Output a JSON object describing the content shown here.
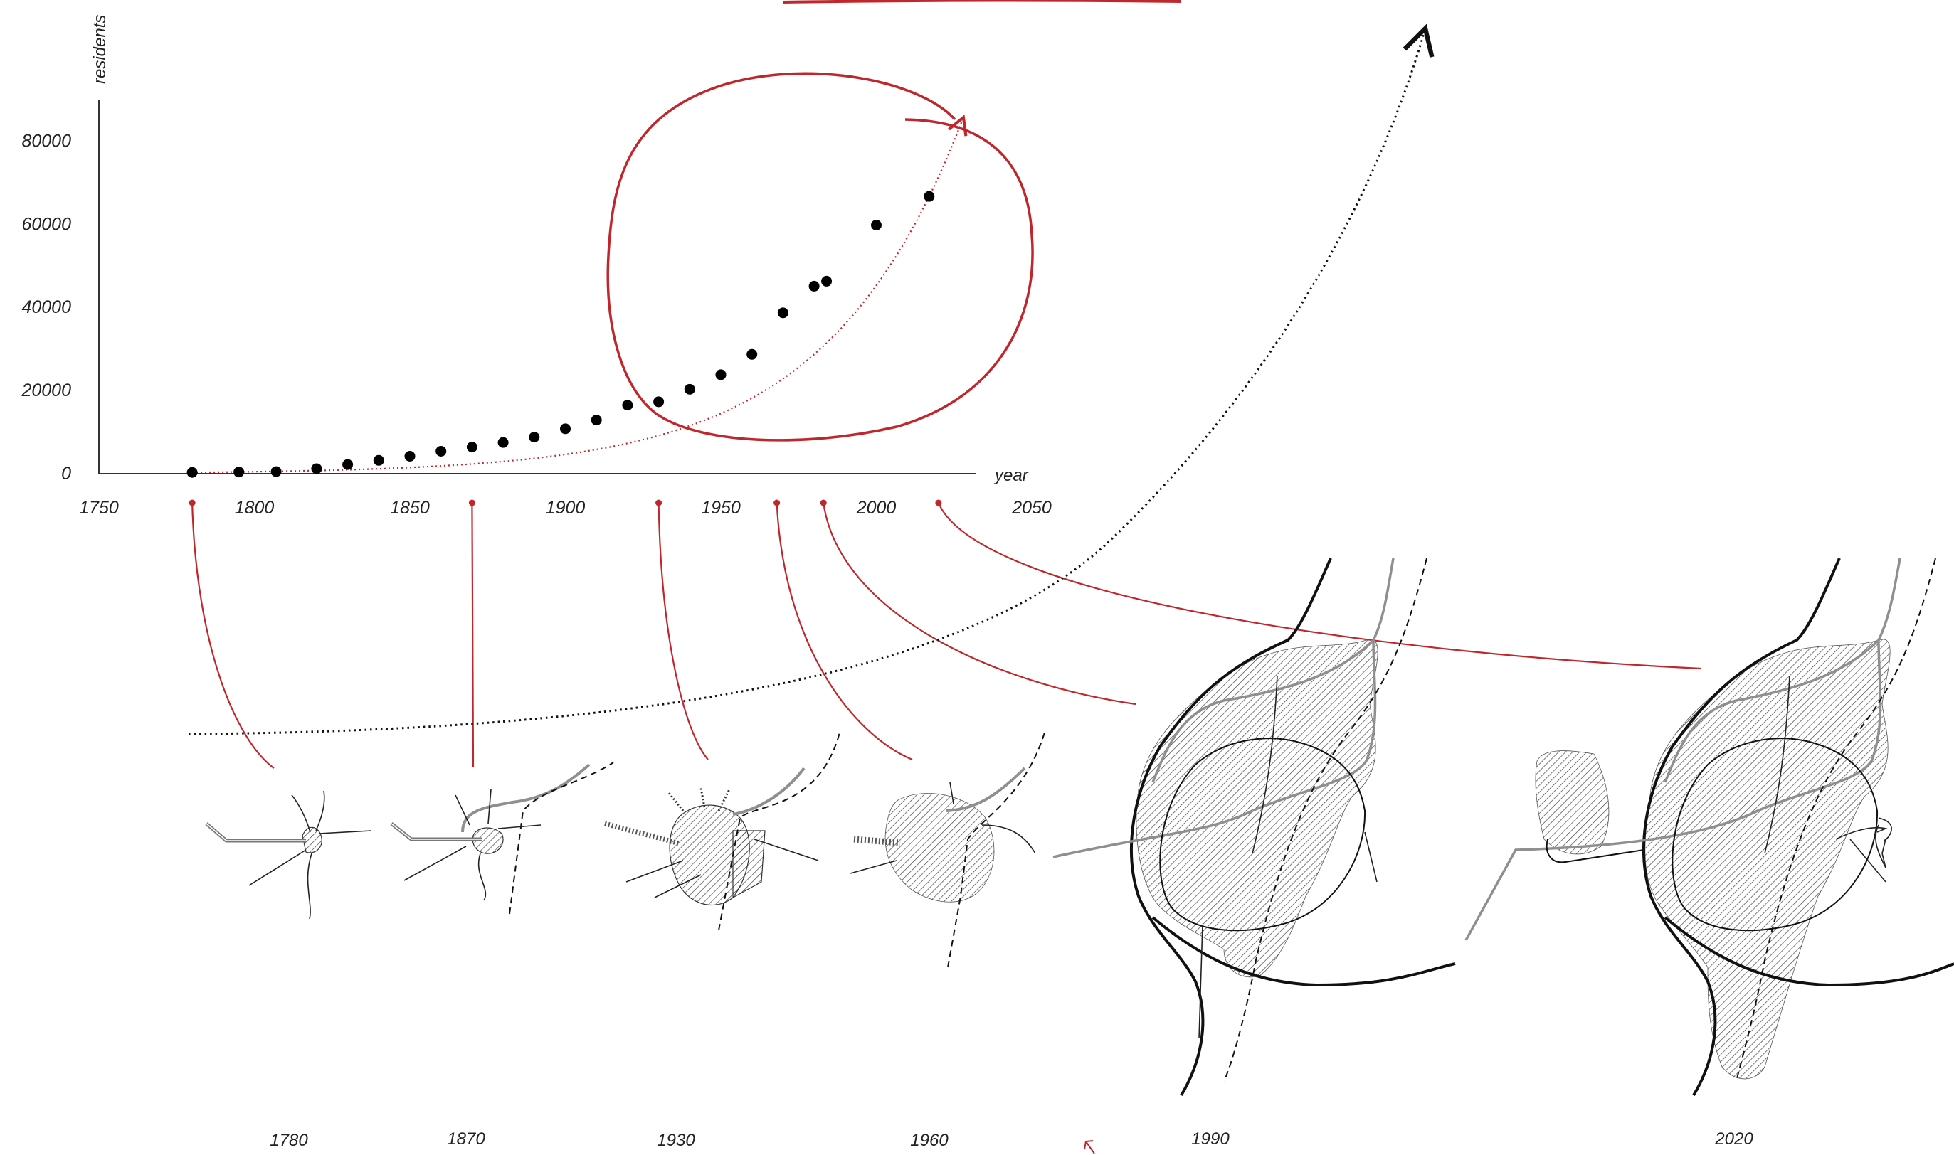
{
  "chart_data": {
    "type": "scatter",
    "xlabel": "year",
    "ylabel": "residents",
    "xlim": [
      1750,
      2050
    ],
    "ylim": [
      0,
      90000
    ],
    "x_ticks": [
      "1750",
      "1800",
      "1850",
      "1900",
      "1950",
      "2000",
      "2050"
    ],
    "y_ticks": [
      "0",
      "20000",
      "40000",
      "60000",
      "80000"
    ],
    "points": [
      {
        "x": 1780,
        "y": 300
      },
      {
        "x": 1795,
        "y": 400
      },
      {
        "x": 1807,
        "y": 500
      },
      {
        "x": 1820,
        "y": 1200
      },
      {
        "x": 1830,
        "y": 2200
      },
      {
        "x": 1840,
        "y": 3200
      },
      {
        "x": 1850,
        "y": 4200
      },
      {
        "x": 1860,
        "y": 5400
      },
      {
        "x": 1870,
        "y": 6400
      },
      {
        "x": 1880,
        "y": 7500
      },
      {
        "x": 1890,
        "y": 8800
      },
      {
        "x": 1900,
        "y": 10800
      },
      {
        "x": 1910,
        "y": 12900
      },
      {
        "x": 1920,
        "y": 16500
      },
      {
        "x": 1930,
        "y": 17300
      },
      {
        "x": 1940,
        "y": 20300
      },
      {
        "x": 1950,
        "y": 23800
      },
      {
        "x": 1960,
        "y": 28700
      },
      {
        "x": 1970,
        "y": 38700
      },
      {
        "x": 1980,
        "y": 45100
      },
      {
        "x": 1984,
        "y": 46300
      },
      {
        "x": 2000,
        "y": 59800
      },
      {
        "x": 2017,
        "y": 66700
      }
    ],
    "trend": {
      "type": "exponential",
      "color": "#c0272d",
      "style": "dotted"
    },
    "highlight_color": "#c0272d",
    "marker_color": "#000000"
  },
  "maps": {
    "years": [
      "1780",
      "1870",
      "1930",
      "1960",
      "1990",
      "2020"
    ],
    "link_years": [
      1780,
      1870,
      1930,
      1968,
      1983,
      2020
    ]
  },
  "colors": {
    "accent": "#c0272d",
    "ink": "#111111",
    "road_gray": "#8f8f8f"
  }
}
